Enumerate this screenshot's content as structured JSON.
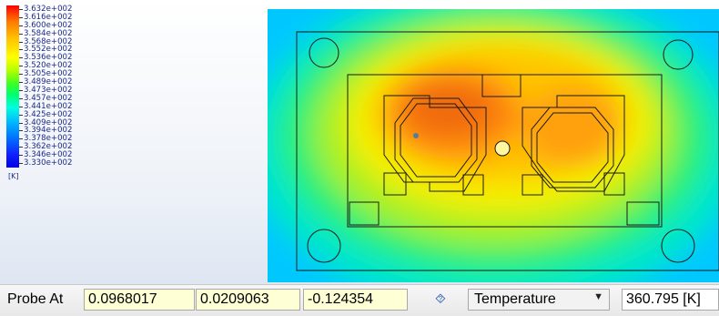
{
  "legend": {
    "labels": [
      "3.632e+002",
      "3.616e+002",
      "3.600e+002",
      "3.584e+002",
      "3.568e+002",
      "3.552e+002",
      "3.536e+002",
      "3.520e+002",
      "3.505e+002",
      "3.489e+002",
      "3.473e+002",
      "3.457e+002",
      "3.441e+002",
      "3.425e+002",
      "3.409e+002",
      "3.394e+002",
      "3.378e+002",
      "3.362e+002",
      "3.346e+002",
      "3.330e+002"
    ],
    "unit": "[K]"
  },
  "probe": {
    "label": "Probe At",
    "x": "0.0968017",
    "y": "0.0209063",
    "z": "-0.124354",
    "pin_icon": "probe-pin-icon",
    "variable": "Temperature",
    "result": "360.795 [K]"
  }
}
